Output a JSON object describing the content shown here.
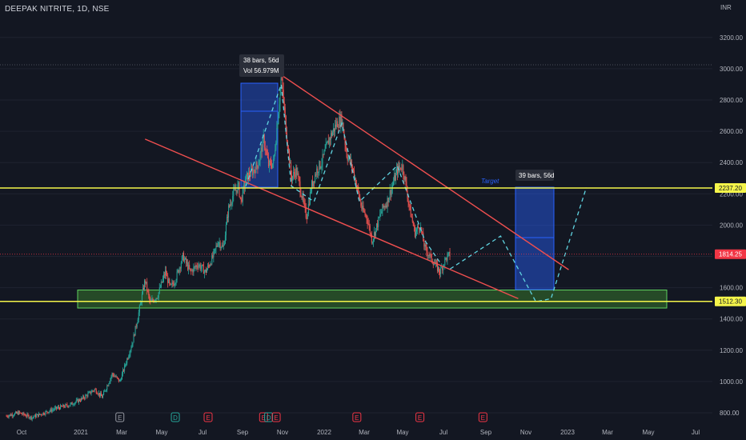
{
  "header": {
    "symbol_line": "DEEPAK NITRITE, 1D, NSE"
  },
  "colors": {
    "background": "#131722",
    "up_candle": "#26a69a",
    "down_candle": "#ef5350",
    "support_resistance_line": "#f5f54a",
    "trendline": "#ef4f4f",
    "projection": "#5fd3e0",
    "demand_zone_fill": "#2e5c2a",
    "demand_zone_border": "#5fd35f",
    "measure_box": "#2962ff",
    "current_price_tag": "#f23645",
    "level_tag": "#f5f54a"
  },
  "chart_data": {
    "type": "candlestick",
    "currency": "INR",
    "y_range": [
      750,
      3350
    ],
    "y_ticks": [
      800,
      1000,
      1200,
      1400,
      1600,
      1800,
      2000,
      2200,
      2400,
      2600,
      2800,
      3000,
      3200
    ],
    "y_tick_labels": [
      "800.00",
      "1000.00",
      "1200.00",
      "1400.00",
      "1600.00",
      "1800.00",
      "2000.00",
      "2200.00",
      "2400.00",
      "2600.00",
      "2800.00",
      "3000.00",
      "3200.00"
    ],
    "x_tick_labels": [
      "Oct",
      "2021",
      "Mar",
      "May",
      "Jul",
      "Sep",
      "Nov",
      "2022",
      "Mar",
      "May",
      "Jul",
      "Sep",
      "Nov",
      "2023",
      "Mar",
      "May",
      "Jul"
    ],
    "price_path": [
      [
        0,
        780
      ],
      [
        5,
        800
      ],
      [
        10,
        770
      ],
      [
        15,
        800
      ],
      [
        20,
        830
      ],
      [
        25,
        850
      ],
      [
        30,
        890
      ],
      [
        35,
        950
      ],
      [
        38,
        900
      ],
      [
        42,
        1050
      ],
      [
        45,
        1000
      ],
      [
        48,
        1150
      ],
      [
        50,
        1250
      ],
      [
        52,
        1400
      ],
      [
        55,
        1650
      ],
      [
        57,
        1500
      ],
      [
        60,
        1550
      ],
      [
        63,
        1700
      ],
      [
        65,
        1600
      ],
      [
        67,
        1650
      ],
      [
        70,
        1800
      ],
      [
        73,
        1700
      ],
      [
        76,
        1750
      ],
      [
        79,
        1700
      ],
      [
        82,
        1800
      ],
      [
        84,
        1900
      ],
      [
        86,
        1850
      ],
      [
        88,
        2100
      ],
      [
        90,
        2200
      ],
      [
        92,
        2250
      ],
      [
        93,
        2150
      ],
      [
        95,
        2300
      ],
      [
        98,
        2350
      ],
      [
        100,
        2400
      ],
      [
        102,
        2550
      ],
      [
        104,
        2380
      ],
      [
        106,
        2400
      ],
      [
        108,
        2750
      ],
      [
        109,
        2950
      ],
      [
        111,
        2600
      ],
      [
        113,
        2300
      ],
      [
        115,
        2350
      ],
      [
        117,
        2200
      ],
      [
        119,
        2050
      ],
      [
        121,
        2250
      ],
      [
        123,
        2350
      ],
      [
        125,
        2400
      ],
      [
        128,
        2550
      ],
      [
        131,
        2650
      ],
      [
        133,
        2680
      ],
      [
        135,
        2450
      ],
      [
        137,
        2380
      ],
      [
        139,
        2250
      ],
      [
        141,
        2100
      ],
      [
        143,
        2050
      ],
      [
        145,
        1900
      ],
      [
        147,
        2000
      ],
      [
        149,
        2100
      ],
      [
        151,
        2150
      ],
      [
        153,
        2250
      ],
      [
        155,
        2350
      ],
      [
        157,
        2380
      ],
      [
        158,
        2300
      ],
      [
        160,
        2100
      ],
      [
        162,
        1950
      ],
      [
        164,
        2000
      ],
      [
        166,
        1850
      ],
      [
        168,
        1800
      ],
      [
        170,
        1750
      ],
      [
        172,
        1700
      ],
      [
        174,
        1780
      ],
      [
        176,
        1814
      ]
    ],
    "levels": [
      {
        "name": "resistance",
        "value": 2237.2,
        "label": "2237.20"
      },
      {
        "name": "support",
        "value": 1512.3,
        "label": "1512.30"
      }
    ],
    "last_price": {
      "value": 1814.25,
      "label": "1814.25"
    },
    "demand_zone": {
      "from": 1470,
      "to": 1585
    },
    "annotations": {
      "measure_left_bars": "38 bars, 56d",
      "measure_left_vol": "Vol 56.979M",
      "measure_right_bars": "39 bars, 56d",
      "target_label": "Target"
    },
    "projection_path": [
      [
        176,
        1720
      ],
      [
        196,
        1930
      ],
      [
        210,
        1510
      ],
      [
        216,
        1530
      ],
      [
        230,
        2240
      ]
    ],
    "trendline_upper": [
      [
        109,
        2960
      ],
      [
        223,
        1715
      ]
    ],
    "trendline_lower": [
      [
        55,
        2550
      ],
      [
        203,
        1530
      ]
    ],
    "event_markers": [
      {
        "letter": "E",
        "x": 45
      },
      {
        "letter": "D",
        "x": 67
      },
      {
        "letter": "E",
        "x": 80
      },
      {
        "letter": "E",
        "x": 102
      },
      {
        "letter": "D",
        "x": 104
      },
      {
        "letter": "E",
        "x": 107
      },
      {
        "letter": "E",
        "x": 139
      },
      {
        "letter": "E",
        "x": 164
      },
      {
        "letter": "E",
        "x": 189
      }
    ]
  }
}
